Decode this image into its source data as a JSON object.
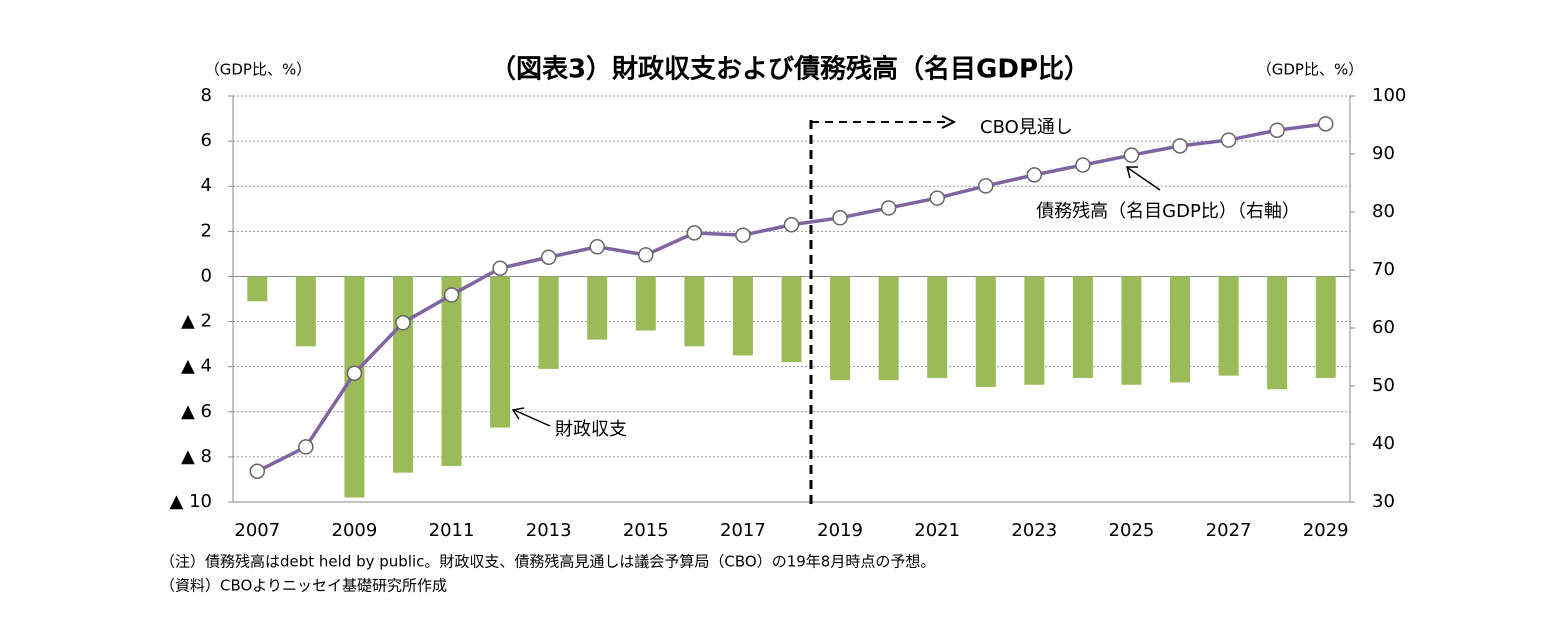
{
  "chart_data": {
    "type": "bar_line",
    "title": "（図表3）財政収支および債務残高（名目GDP比）",
    "y_label": "（GDP比、%）",
    "y2_label": "（GDP比、%）",
    "categories": [
      "2007",
      null,
      "2009",
      null,
      "2011",
      null,
      "2013",
      null,
      "2015",
      null,
      "2017",
      null,
      "2019",
      null,
      "2021",
      null,
      "2023",
      null,
      "2025",
      null,
      "2027",
      null,
      "2029"
    ],
    "series": [
      {
        "name": "財政収支",
        "type": "bar",
        "color": "#9bbb59",
        "values": [
          -1.1,
          -3.1,
          -9.8,
          -8.7,
          -8.4,
          -6.7,
          -4.1,
          -2.8,
          -2.4,
          -3.1,
          -3.5,
          -3.8,
          -4.6,
          -4.6,
          -4.5,
          -4.9,
          -4.8,
          -4.5,
          -4.8,
          -4.7,
          -4.4,
          -5.0,
          -4.5
        ]
      },
      {
        "name": "債務残高（名目GDP比）（右軸）",
        "type": "line",
        "axis": "y2",
        "color": "#8064a2",
        "values": [
          35.3,
          39.5,
          52.2,
          60.9,
          65.7,
          70.3,
          72.2,
          74.0,
          72.6,
          76.4,
          76.0,
          77.8,
          79.0,
          80.7,
          82.4,
          84.5,
          86.4,
          88.1,
          89.8,
          91.4,
          92.4,
          94.1,
          95.2
        ]
      }
    ],
    "ylim": [
      -10,
      8
    ],
    "yticks": [
      {
        "value": -10,
        "label": "▲ 10"
      },
      {
        "value": -8,
        "label": "▲ 8"
      },
      {
        "value": -6,
        "label": "▲ 6"
      },
      {
        "value": -4,
        "label": "▲ 4"
      },
      {
        "value": -2,
        "label": "▲ 2"
      },
      0,
      2,
      4,
      6,
      8
    ],
    "y2lim": [
      30,
      100
    ],
    "y2ticks": [
      30,
      40,
      50,
      60,
      70,
      80,
      90,
      100
    ],
    "grid": true,
    "annotations": [
      "CBO見通し"
    ],
    "notes": [
      "（注）債務残高はdebt held by public。財政収支、債務残高見通しは議会予算局（CBO）の19年8月時点の予想。",
      "（資料）CBOよりニッセイ基礎研究所作成"
    ]
  }
}
